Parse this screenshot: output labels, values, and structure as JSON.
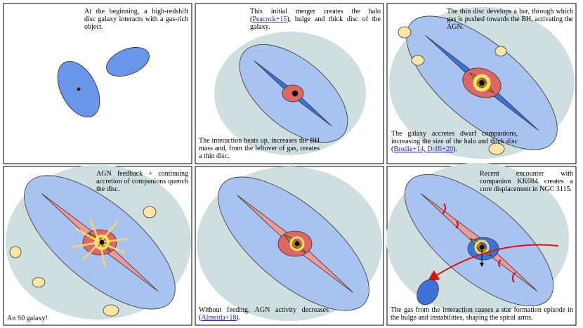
{
  "panels": [
    {
      "captions": [
        {
          "parts": [
            {
              "text": "At the beginning, a high-redshift disc galaxy interacts with a gas-rich object."
            }
          ]
        }
      ]
    },
    {
      "captions": [
        {
          "parts": [
            {
              "text": "This initial merger creates the halo ("
            },
            {
              "link": "Peacock+15"
            },
            {
              "text": "), bulge and thick disc of the galaxy."
            }
          ]
        },
        {
          "parts": [
            {
              "text": "The interaction heats up, increases the BH mass and, from the leftover of gas, creates a thin disc."
            }
          ]
        }
      ]
    },
    {
      "captions": [
        {
          "parts": [
            {
              "text": "The thin disc develops a bar, through which gas is pushed towards the BH, activating the AGN."
            }
          ]
        },
        {
          "parts": [
            {
              "text": "The galaxy accretes dwarf companions, increasing the size of the halo and thick disc ("
            },
            {
              "link": "Brodie+14, Dolfi+20"
            },
            {
              "text": ")."
            }
          ]
        }
      ]
    },
    {
      "captions": [
        {
          "parts": [
            {
              "text": "AGN feedback + continuing accretion of companions quench the disc."
            }
          ]
        },
        {
          "parts": [
            {
              "text": "An S0 galaxy!"
            }
          ]
        }
      ]
    },
    {
      "captions": [
        {
          "parts": [
            {
              "text": "Without feeding, AGN activity decreases ("
            },
            {
              "link": "Almeida+18"
            },
            {
              "text": ")."
            }
          ]
        }
      ]
    },
    {
      "captions": [
        {
          "parts": [
            {
              "text": "Recent encounter with companion KK084 creates a core displacement in NGC 3115."
            }
          ]
        },
        {
          "parts": [
            {
              "text": "The gas from the interaction causes a star formation episode in the bulge and instabilities, shaping the spiral arms."
            }
          ]
        }
      ]
    }
  ]
}
